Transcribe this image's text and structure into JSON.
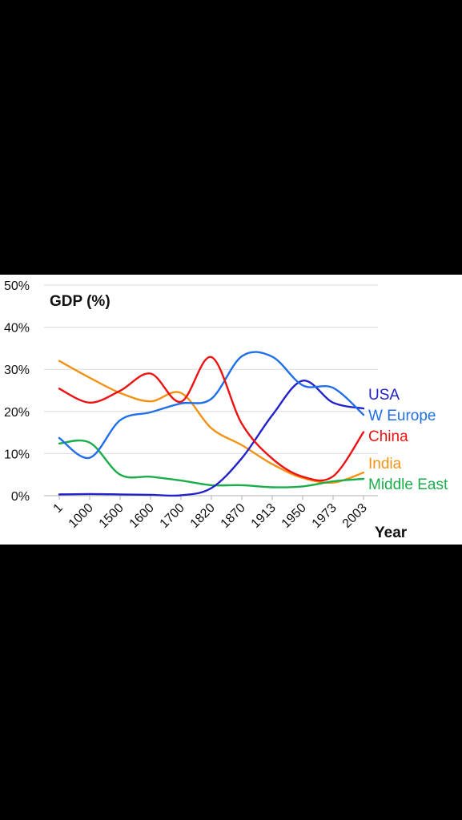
{
  "chart_data": {
    "type": "line",
    "title": "GDP (%)",
    "xlabel": "Year",
    "ylabel": "",
    "categories": [
      "1",
      "1000",
      "1500",
      "1600",
      "1700",
      "1820",
      "1870",
      "1913",
      "1950",
      "1973",
      "2003"
    ],
    "y_ticks": [
      "0%",
      "10%",
      "20%",
      "30%",
      "40%",
      "50%"
    ],
    "ylim": [
      0,
      50
    ],
    "grid": true,
    "series": [
      {
        "name": "USA",
        "color": "#2222cc",
        "values": [
          0.3,
          0.4,
          0.3,
          0.2,
          0.1,
          1.8,
          8.9,
          19.1,
          27.3,
          22.1,
          20.7
        ]
      },
      {
        "name": "W Europe",
        "color": "#1f6fea",
        "values": [
          13.7,
          9.0,
          17.9,
          19.8,
          21.9,
          23.0,
          33.1,
          33.0,
          26.2,
          25.6,
          19.2
        ]
      },
      {
        "name": "China",
        "color": "#ee1111",
        "values": [
          25.4,
          22.1,
          24.9,
          29.0,
          22.3,
          32.9,
          17.1,
          8.8,
          4.5,
          4.6,
          15.1
        ]
      },
      {
        "name": "India",
        "color": "#f39212",
        "values": [
          32.0,
          28.0,
          24.4,
          22.4,
          24.4,
          16.0,
          12.0,
          7.5,
          4.2,
          3.1,
          5.5
        ]
      },
      {
        "name": "Middle East",
        "color": "#1aae4a",
        "values": [
          12.4,
          12.6,
          5.0,
          4.5,
          3.6,
          2.5,
          2.5,
          2.0,
          2.2,
          3.4,
          4.0
        ]
      }
    ]
  }
}
